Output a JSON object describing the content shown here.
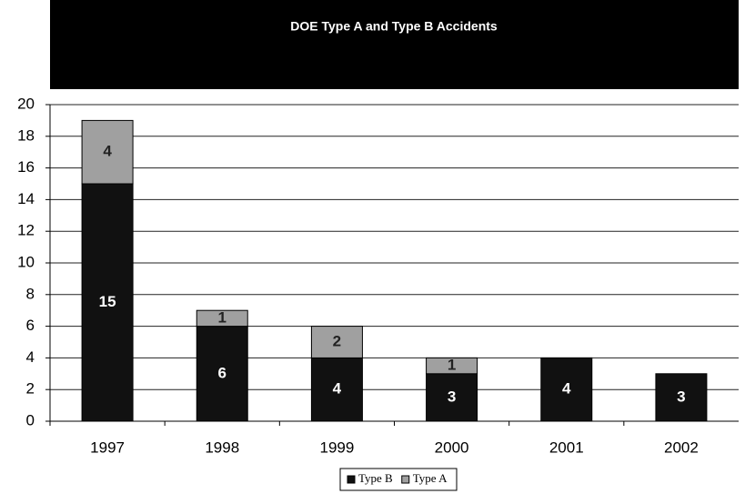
{
  "chart_data": {
    "type": "stacked_bar",
    "title": "DOE Type A and Type B Accidents",
    "categories": [
      "1997",
      "1998",
      "1999",
      "2000",
      "2001",
      "2002"
    ],
    "series": [
      {
        "name": "Type B",
        "color": "#111111",
        "values": [
          15,
          6,
          4,
          3,
          4,
          3
        ]
      },
      {
        "name": "Type A",
        "color": "#a0a0a0",
        "values": [
          4,
          1,
          2,
          1,
          null,
          null
        ]
      }
    ],
    "ylim": [
      0,
      20
    ],
    "yticks": [
      0,
      2,
      4,
      6,
      8,
      10,
      12,
      14,
      16,
      18,
      20
    ],
    "grid": true,
    "legend": "bottom"
  }
}
